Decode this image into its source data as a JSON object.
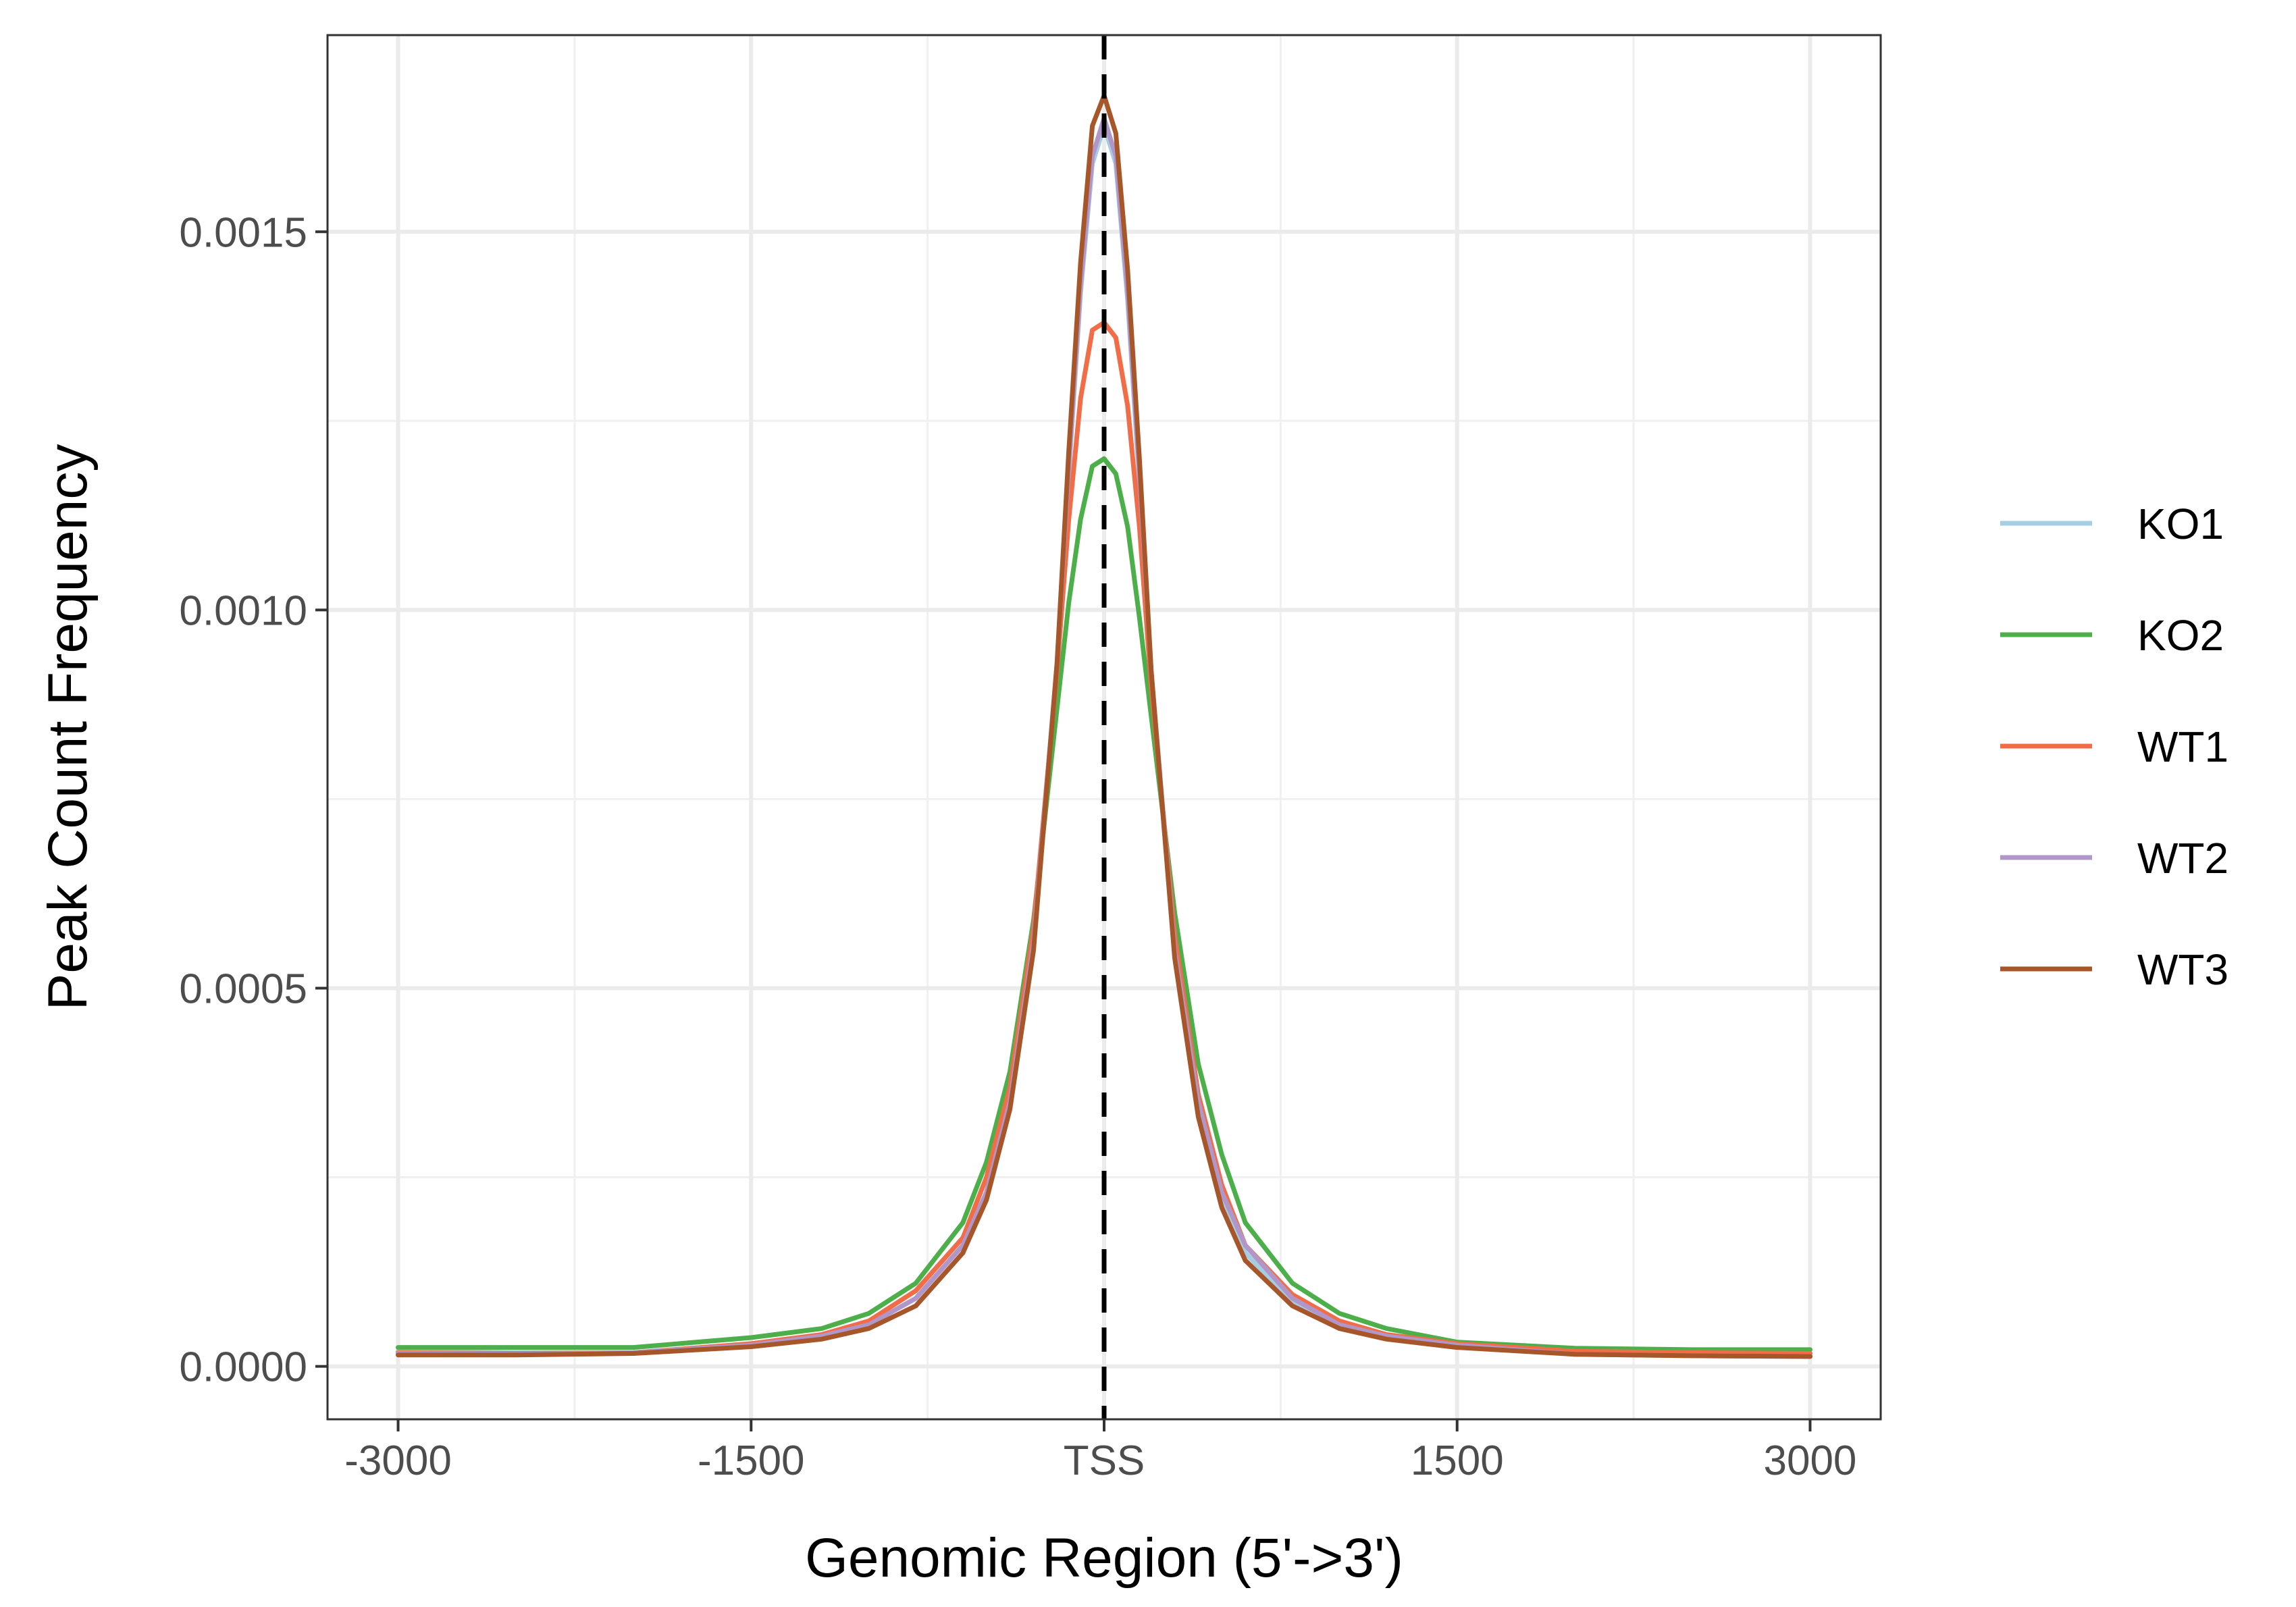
{
  "chart_data": {
    "type": "line",
    "title": "",
    "xlabel": "Genomic Region (5'->3')",
    "ylabel": "Peak Count Frequency",
    "xlim": [
      -3300,
      3300
    ],
    "ylim": [
      -7e-05,
      0.00176
    ],
    "x_ticks": [
      {
        "value": -3000,
        "label": "-3000"
      },
      {
        "value": -1500,
        "label": "-1500"
      },
      {
        "value": 0,
        "label": "TSS"
      },
      {
        "value": 1500,
        "label": "1500"
      },
      {
        "value": 3000,
        "label": "3000"
      }
    ],
    "y_ticks": [
      {
        "value": 0.0,
        "label": "0.0000"
      },
      {
        "value": 0.0005,
        "label": "0.0005"
      },
      {
        "value": 0.001,
        "label": "0.0010"
      },
      {
        "value": 0.0015,
        "label": "0.0015"
      }
    ],
    "x_minor_grid": [
      -2250,
      -750,
      750,
      2250
    ],
    "y_minor_grid": [
      0.00025,
      0.00075,
      0.00125
    ],
    "grid": true,
    "vline": {
      "x": 0,
      "style": "dashed",
      "color": "#000000"
    },
    "legend_position": "right",
    "x": [
      -3000,
      -2500,
      -2000,
      -1500,
      -1200,
      -1000,
      -800,
      -600,
      -500,
      -400,
      -300,
      -200,
      -150,
      -100,
      -50,
      0,
      50,
      100,
      150,
      200,
      300,
      400,
      500,
      600,
      800,
      1000,
      1200,
      1500,
      2000,
      2500,
      3000
    ],
    "series": [
      {
        "name": "KO1",
        "color": "#a6cee3",
        "values": [
          2e-05,
          1.8e-05,
          1.8e-05,
          3e-05,
          4e-05,
          5.5e-05,
          9e-05,
          0.00016,
          0.00023,
          0.00035,
          0.00056,
          0.00092,
          0.00118,
          0.00142,
          0.00159,
          0.00164,
          0.00159,
          0.00141,
          0.00117,
          0.00091,
          0.00055,
          0.00034,
          0.00022,
          0.00015,
          8.5e-05,
          5.5e-05,
          4e-05,
          3e-05,
          1.8e-05,
          1.6e-05,
          1.5e-05
        ]
      },
      {
        "name": "KO2",
        "color": "#4daf4a",
        "values": [
          2.5e-05,
          2.5e-05,
          2.5e-05,
          3.8e-05,
          5e-05,
          7e-05,
          0.00011,
          0.00019,
          0.00027,
          0.00039,
          0.00059,
          0.00087,
          0.00101,
          0.00112,
          0.00119,
          0.0012,
          0.00118,
          0.00111,
          0.00099,
          0.00086,
          0.0006,
          0.0004,
          0.00028,
          0.00019,
          0.00011,
          7e-05,
          5e-05,
          3.2e-05,
          2.4e-05,
          2.2e-05,
          2.2e-05
        ]
      },
      {
        "name": "WT1",
        "color": "#f16d48",
        "values": [
          1.8e-05,
          1.7e-05,
          1.8e-05,
          3e-05,
          4.2e-05,
          6e-05,
          0.0001,
          0.00017,
          0.00025,
          0.00037,
          0.00058,
          0.00092,
          0.00112,
          0.00128,
          0.00137,
          0.00138,
          0.00136,
          0.00127,
          0.00111,
          0.0009,
          0.00057,
          0.00036,
          0.00024,
          0.00016,
          9.5e-05,
          6e-05,
          4.2e-05,
          3e-05,
          2e-05,
          1.8e-05,
          1.7e-05
        ]
      },
      {
        "name": "WT2",
        "color": "#b197c9",
        "values": [
          1.7e-05,
          1.6e-05,
          1.8e-05,
          2.8e-05,
          4e-05,
          5.5e-05,
          9e-05,
          0.00016,
          0.00023,
          0.00035,
          0.00056,
          0.00093,
          0.00119,
          0.00143,
          0.0016,
          0.00165,
          0.0016,
          0.00142,
          0.00118,
          0.00092,
          0.00055,
          0.00035,
          0.00023,
          0.00016,
          9e-05,
          5.5e-05,
          4e-05,
          2.8e-05,
          1.6e-05,
          1.4e-05,
          1.3e-05
        ]
      },
      {
        "name": "WT3",
        "color": "#a65628",
        "values": [
          1.5e-05,
          1.5e-05,
          1.7e-05,
          2.6e-05,
          3.6e-05,
          5e-05,
          8e-05,
          0.00015,
          0.00022,
          0.00034,
          0.00055,
          0.00093,
          0.00121,
          0.00146,
          0.00164,
          0.00168,
          0.00163,
          0.00145,
          0.0012,
          0.00092,
          0.00054,
          0.00033,
          0.00021,
          0.00014,
          8e-05,
          5e-05,
          3.6e-05,
          2.5e-05,
          1.6e-05,
          1.4e-05,
          1.3e-05
        ]
      }
    ]
  }
}
